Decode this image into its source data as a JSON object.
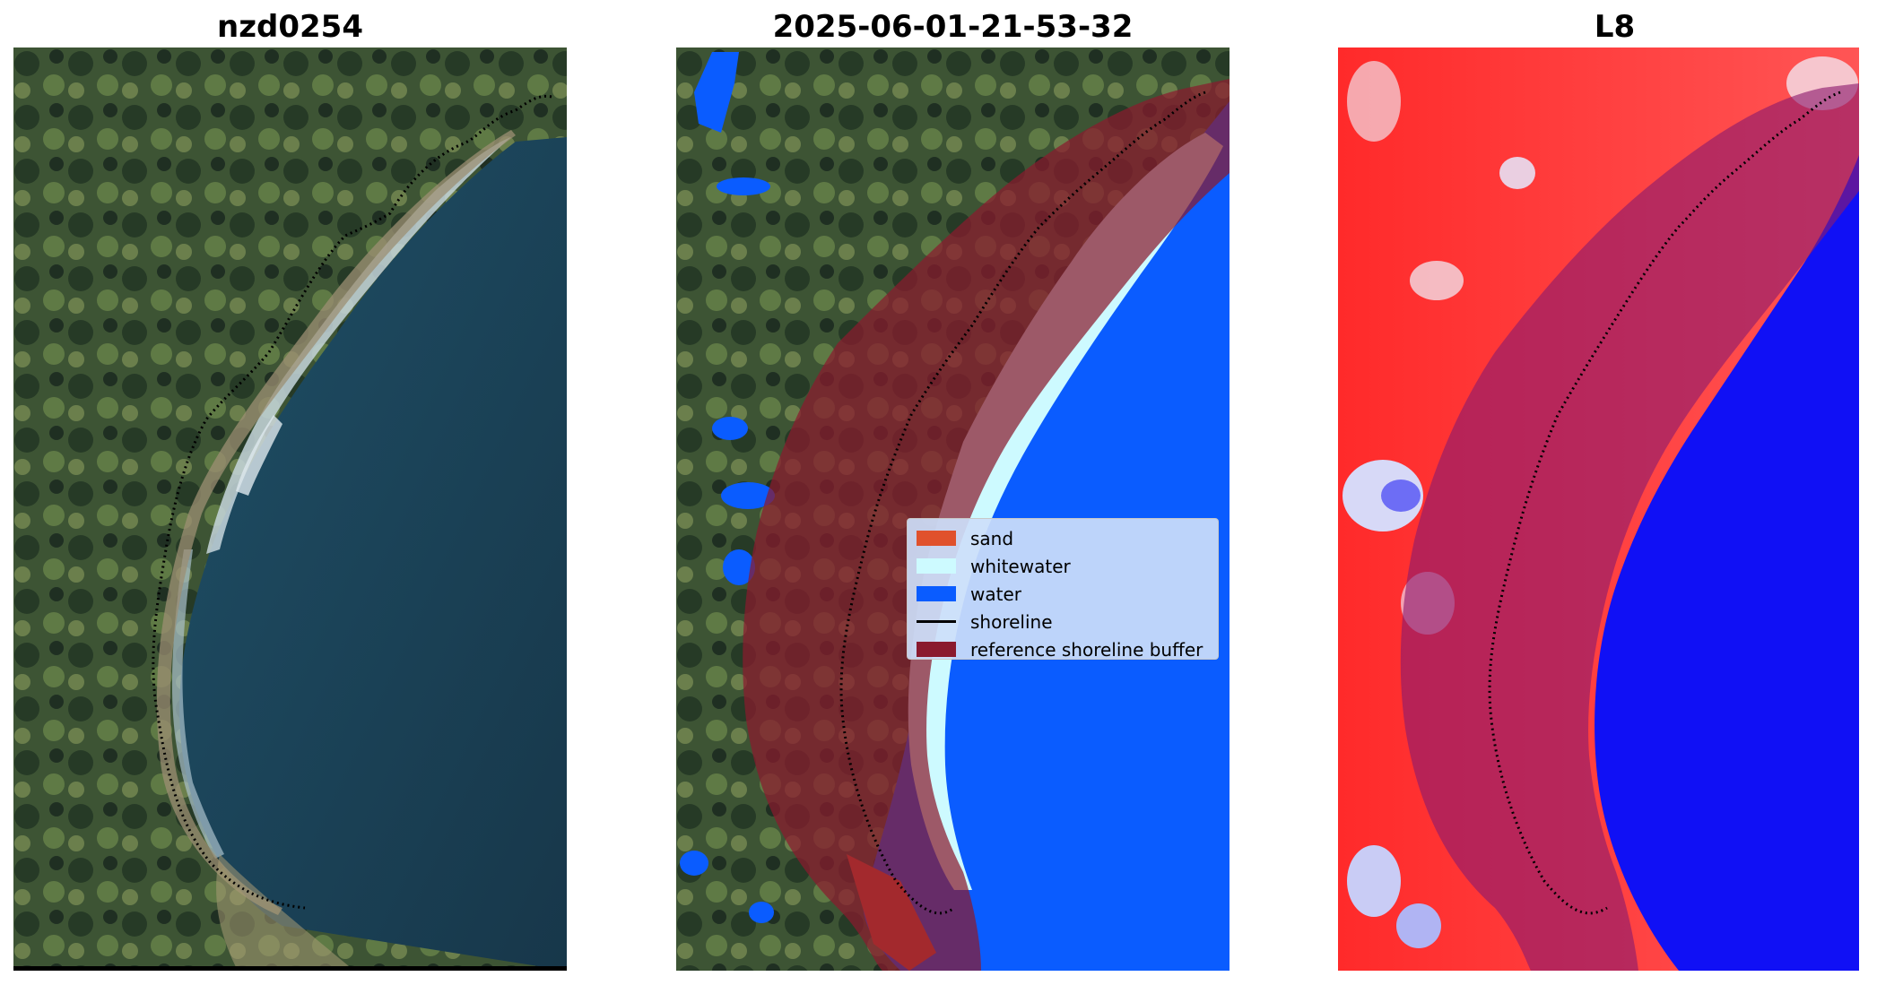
{
  "panels": [
    {
      "title": "nzd0254",
      "content": "satellite RGB image with detected shoreline"
    },
    {
      "title": "2025-06-01-21-53-32",
      "content": "classified image with shoreline and reference buffer"
    },
    {
      "title": "L8",
      "content": "water index image with shoreline and reference buffer"
    }
  ],
  "legend": {
    "items": [
      {
        "label": "sand",
        "color": "#e0512c",
        "kind": "patch"
      },
      {
        "label": "whitewater",
        "color": "#cdfaff",
        "kind": "patch"
      },
      {
        "label": "water",
        "color": "#0a5cff",
        "kind": "patch"
      },
      {
        "label": "shoreline",
        "color": "#000000",
        "kind": "line"
      },
      {
        "label": "reference shoreline buffer",
        "color": "#8a1a2e",
        "kind": "patch"
      }
    ]
  },
  "colors": {
    "land_dark": "#2f3e2a",
    "land_green": "#4f6a3c",
    "ocean": "#1e4a5c",
    "water_class": "#0a5cff",
    "buffer": "#8a1a2e",
    "index_land": "#ff2a2a",
    "index_water": "#1010f5"
  }
}
